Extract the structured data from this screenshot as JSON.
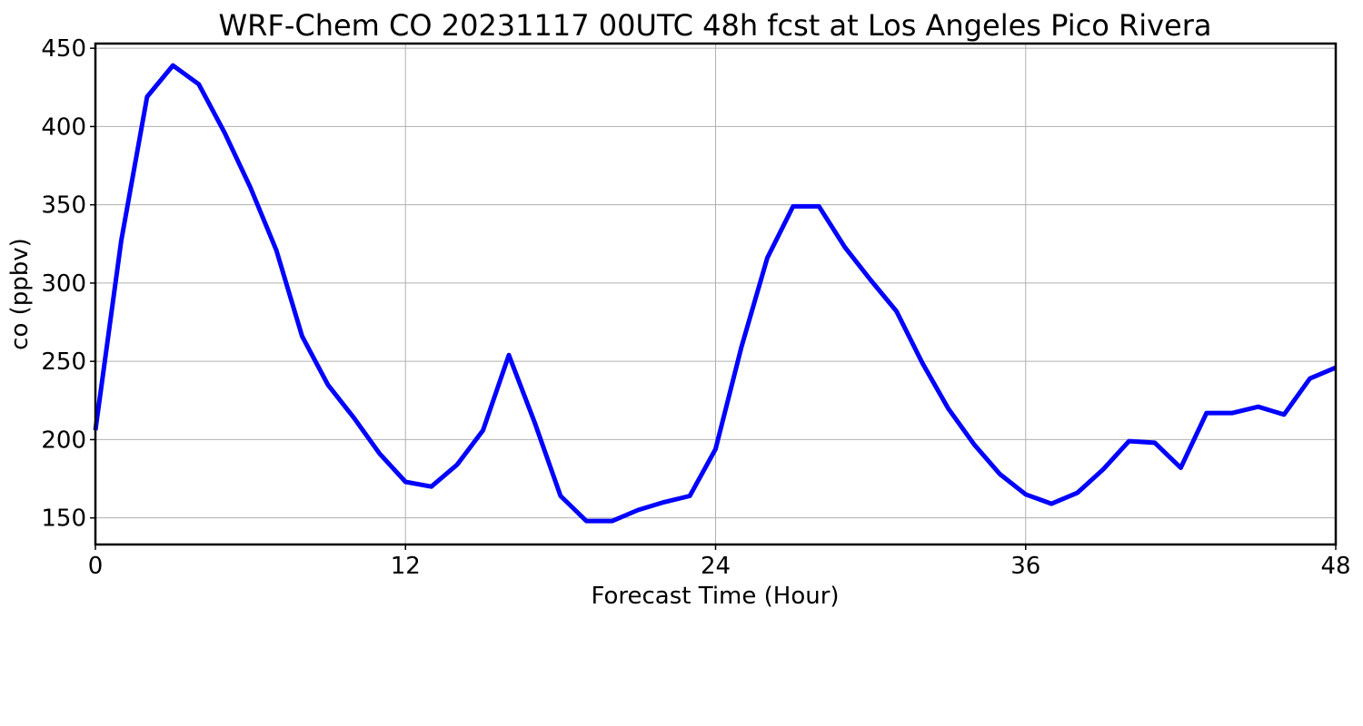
{
  "chart_data": {
    "type": "line",
    "title": "WRF-Chem CO  20231117 00UTC 48h fcst at Los Angeles Pico Rivera",
    "xlabel": "Forecast Time (Hour)",
    "ylabel": "co  (ppbv)",
    "xlim": [
      0,
      48
    ],
    "ylim": [
      133,
      453
    ],
    "xticks": [
      0,
      12,
      24,
      36,
      48
    ],
    "yticks": [
      150,
      200,
      250,
      300,
      350,
      400,
      450
    ],
    "grid": true,
    "series": [
      {
        "color": "#0000ff",
        "x": [
          0,
          1,
          2,
          3,
          4,
          5,
          6,
          7,
          8,
          9,
          10,
          11,
          12,
          13,
          14,
          15,
          16,
          17,
          18,
          19,
          20,
          21,
          22,
          23,
          24,
          25,
          26,
          27,
          28,
          29,
          30,
          31,
          32,
          33,
          34,
          35,
          36,
          37,
          38,
          39,
          40,
          41,
          42,
          43,
          44,
          45,
          46,
          47,
          48
        ],
        "y": [
          206,
          327,
          419,
          439,
          427,
          396,
          361,
          321,
          266,
          235,
          214,
          191,
          173,
          170,
          184,
          206,
          254,
          211,
          164,
          148,
          148,
          155,
          160,
          164,
          194,
          259,
          316,
          349,
          349,
          323,
          302,
          282,
          249,
          220,
          197,
          178,
          165,
          159,
          166,
          181,
          199,
          198,
          182,
          217,
          217,
          221,
          216,
          239,
          246
        ]
      }
    ]
  }
}
